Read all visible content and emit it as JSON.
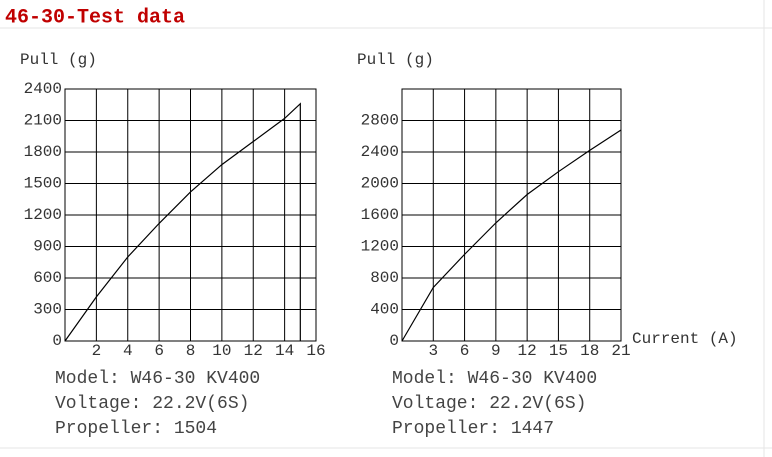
{
  "title": "46-30-Test data",
  "chart_data": [
    {
      "type": "line",
      "y_label": "Pull (g)",
      "x": [
        0,
        2,
        4,
        6,
        8,
        10,
        12,
        14,
        15,
        15
      ],
      "values": [
        0,
        420,
        800,
        1120,
        1420,
        1680,
        1900,
        2120,
        2260,
        0
      ],
      "color": "#000000",
      "xlim": [
        0,
        16
      ],
      "xticks": [
        2,
        4,
        6,
        8,
        10,
        12,
        14,
        16
      ],
      "ylim": [
        0,
        2400
      ],
      "yticks": [
        0,
        300,
        600,
        900,
        1200,
        1500,
        1800,
        2100,
        2400
      ],
      "grid": true,
      "notes": [
        "Model: W46-30 KV400",
        "Voltage: 22.2V(6S)",
        "Propeller: 1504"
      ]
    },
    {
      "type": "line",
      "y_label": "Pull (g)",
      "x_label": "Current (A)",
      "x": [
        0,
        3,
        6,
        9,
        12,
        15,
        18,
        21
      ],
      "values": [
        0,
        680,
        1100,
        1500,
        1860,
        2150,
        2420,
        2680
      ],
      "color": "#000000",
      "xlim": [
        0,
        21
      ],
      "xticks": [
        3,
        6,
        9,
        12,
        15,
        18,
        21
      ],
      "ylim": [
        0,
        3200
      ],
      "yticks": [
        0,
        400,
        800,
        1200,
        1600,
        2000,
        2400,
        2800
      ],
      "grid": true,
      "notes": [
        "Model: W46-30 KV400",
        "Voltage: 22.2V(6S)",
        "Propeller: 1447"
      ]
    }
  ]
}
